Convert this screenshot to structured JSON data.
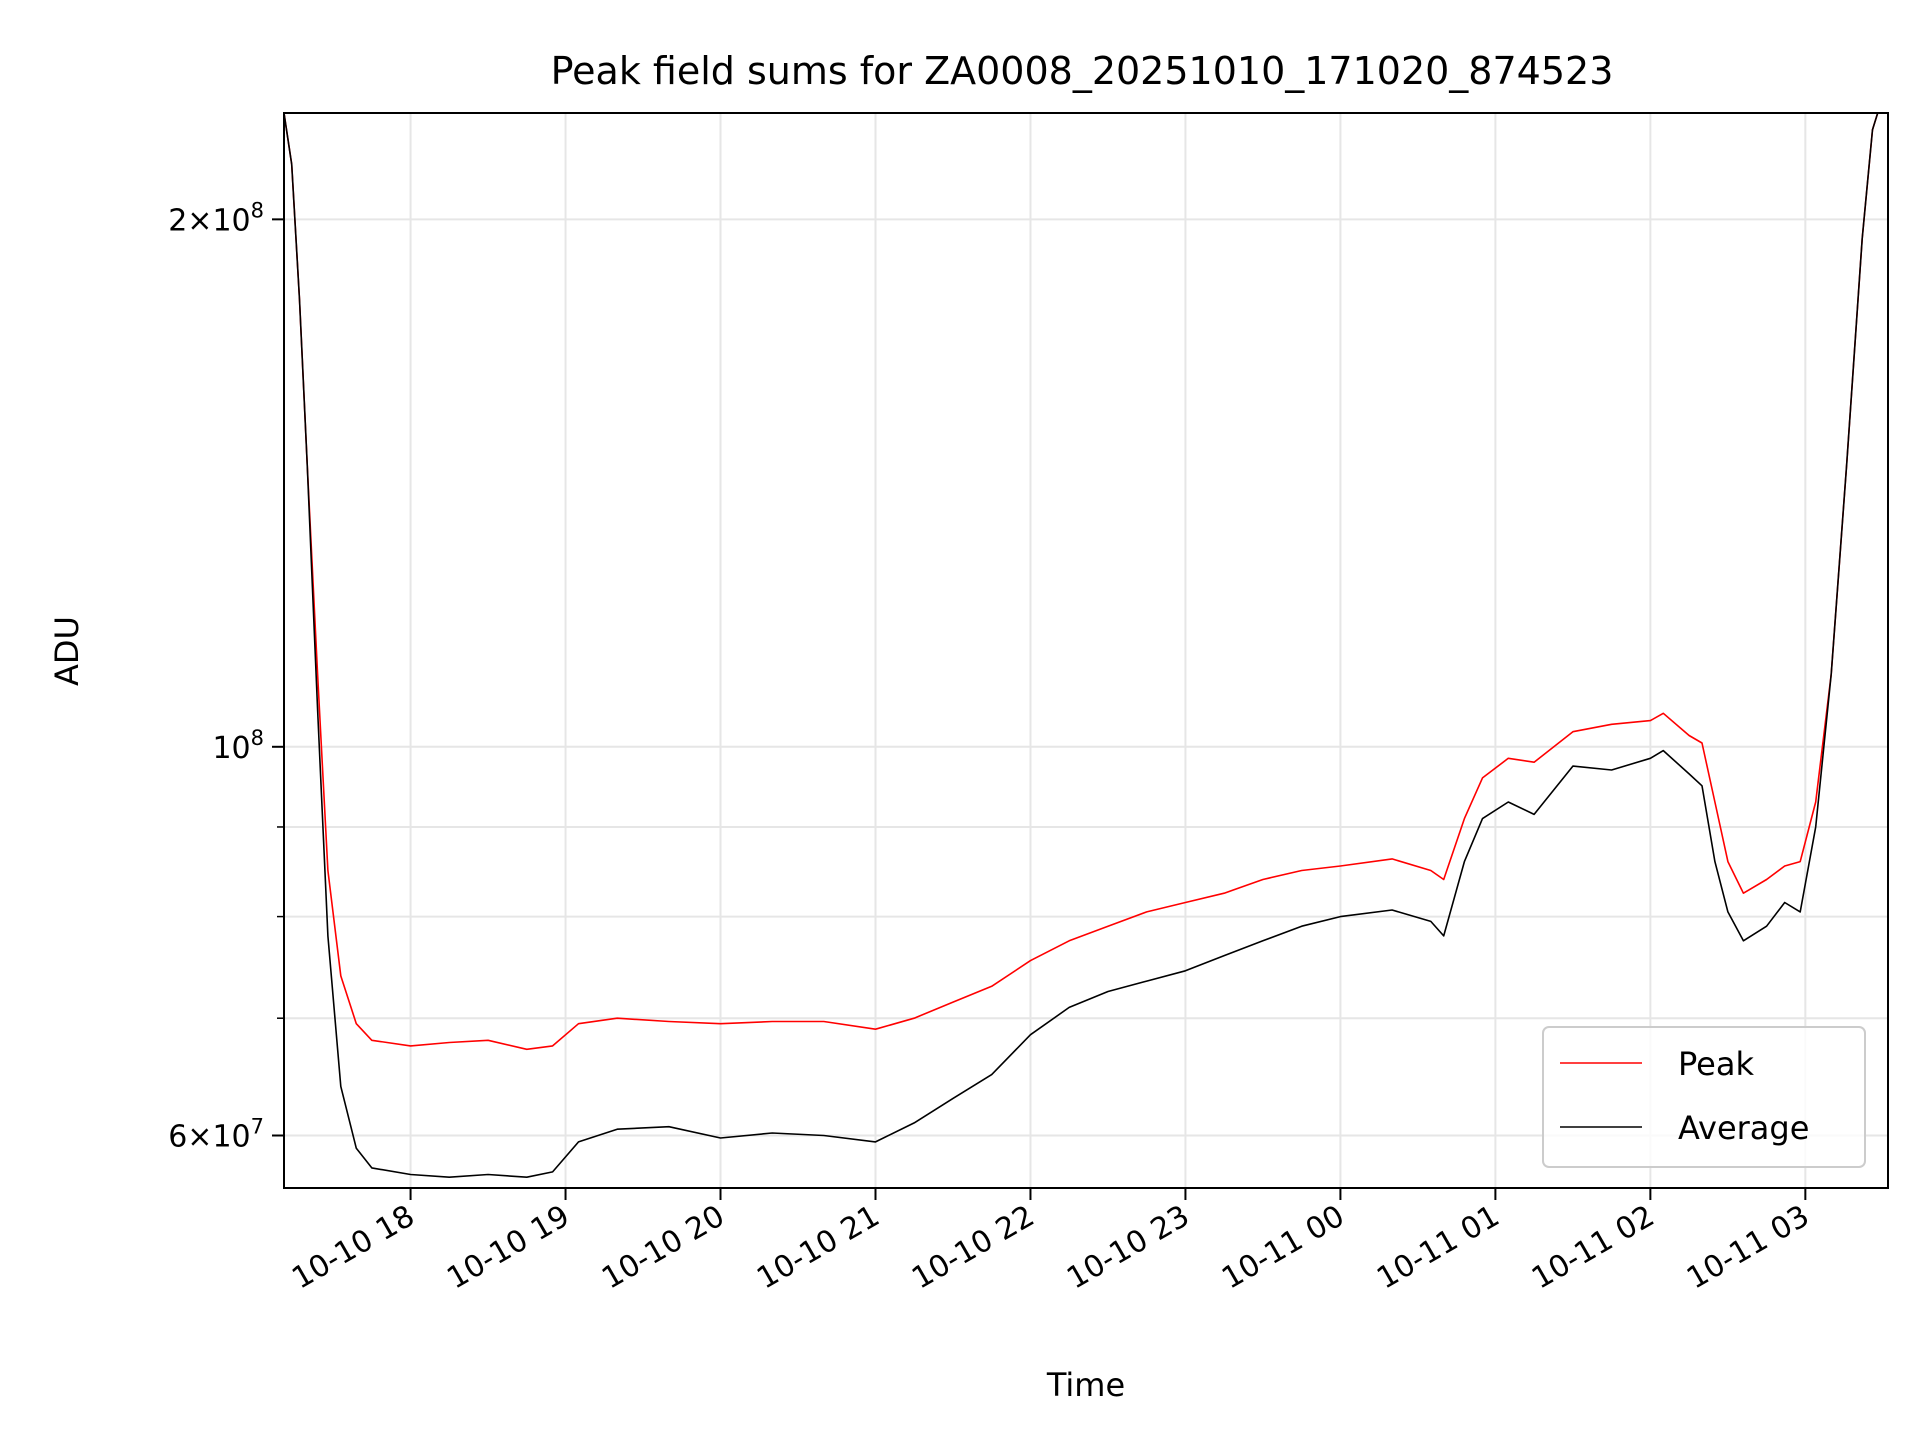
{
  "chart_data": {
    "type": "line",
    "title": "Peak field sums for ZA0008_20251010_171020_874523",
    "xlabel": "Time",
    "ylabel": "ADU",
    "y_scale": "log",
    "ylim": [
      56000000,
      230000000
    ],
    "xlim": [
      "2025-10-10 17:11",
      "2025-10-11 03:32"
    ],
    "grid": true,
    "legend_position": "lower-right",
    "x_ticks": [
      {
        "label": "10-10 18",
        "value": "2025-10-10 18:00"
      },
      {
        "label": "10-10 19",
        "value": "2025-10-10 19:00"
      },
      {
        "label": "10-10 20",
        "value": "2025-10-10 20:00"
      },
      {
        "label": "10-10 21",
        "value": "2025-10-10 21:00"
      },
      {
        "label": "10-10 22",
        "value": "2025-10-10 22:00"
      },
      {
        "label": "10-10 23",
        "value": "2025-10-10 23:00"
      },
      {
        "label": "10-11 00",
        "value": "2025-10-11 00:00"
      },
      {
        "label": "10-11 01",
        "value": "2025-10-11 01:00"
      },
      {
        "label": "10-11 02",
        "value": "2025-10-11 02:00"
      },
      {
        "label": "10-11 03",
        "value": "2025-10-11 03:00"
      }
    ],
    "y_ticks_major": [
      {
        "value": 200000000,
        "base": "2",
        "exp": "8"
      },
      {
        "value": 100000000,
        "base": "",
        "exp": "8"
      },
      {
        "value": 60000000,
        "base": "6",
        "exp": "7"
      }
    ],
    "y_ticks_minor": [
      70000000,
      80000000,
      90000000
    ],
    "series": [
      {
        "name": "Peak",
        "color": "#ff0000",
        "points": [
          [
            "2025-10-10 17:11",
            230000000
          ],
          [
            "2025-10-10 17:14",
            215000000
          ],
          [
            "2025-10-10 17:17",
            180000000
          ],
          [
            "2025-10-10 17:20",
            145000000
          ],
          [
            "2025-10-10 17:24",
            110000000
          ],
          [
            "2025-10-10 17:28",
            85000000
          ],
          [
            "2025-10-10 17:33",
            74000000
          ],
          [
            "2025-10-10 17:39",
            69500000
          ],
          [
            "2025-10-10 17:45",
            68000000
          ],
          [
            "2025-10-10 18:00",
            67500000
          ],
          [
            "2025-10-10 18:15",
            67800000
          ],
          [
            "2025-10-10 18:30",
            68000000
          ],
          [
            "2025-10-10 18:45",
            67200000
          ],
          [
            "2025-10-10 18:55",
            67500000
          ],
          [
            "2025-10-10 19:05",
            69500000
          ],
          [
            "2025-10-10 19:20",
            70000000
          ],
          [
            "2025-10-10 19:40",
            69700000
          ],
          [
            "2025-10-10 20:00",
            69500000
          ],
          [
            "2025-10-10 20:20",
            69700000
          ],
          [
            "2025-10-10 20:40",
            69700000
          ],
          [
            "2025-10-10 21:00",
            69000000
          ],
          [
            "2025-10-10 21:15",
            70000000
          ],
          [
            "2025-10-10 21:30",
            71500000
          ],
          [
            "2025-10-10 21:45",
            73000000
          ],
          [
            "2025-10-10 22:00",
            75500000
          ],
          [
            "2025-10-10 22:15",
            77500000
          ],
          [
            "2025-10-10 22:30",
            79000000
          ],
          [
            "2025-10-10 22:45",
            80500000
          ],
          [
            "2025-10-10 23:00",
            81500000
          ],
          [
            "2025-10-10 23:15",
            82500000
          ],
          [
            "2025-10-10 23:30",
            84000000
          ],
          [
            "2025-10-10 23:45",
            85000000
          ],
          [
            "2025-10-11 00:00",
            85500000
          ],
          [
            "2025-10-11 00:20",
            86300000
          ],
          [
            "2025-10-11 00:35",
            85000000
          ],
          [
            "2025-10-11 00:40",
            84000000
          ],
          [
            "2025-10-11 00:48",
            91000000
          ],
          [
            "2025-10-11 00:55",
            96000000
          ],
          [
            "2025-10-11 01:05",
            98500000
          ],
          [
            "2025-10-11 01:15",
            98000000
          ],
          [
            "2025-10-11 01:30",
            102000000
          ],
          [
            "2025-10-11 01:45",
            103000000
          ],
          [
            "2025-10-11 02:00",
            103500000
          ],
          [
            "2025-10-11 02:05",
            104500000
          ],
          [
            "2025-10-11 02:15",
            101500000
          ],
          [
            "2025-10-11 02:20",
            100500000
          ],
          [
            "2025-10-11 02:25",
            93000000
          ],
          [
            "2025-10-11 02:30",
            86000000
          ],
          [
            "2025-10-11 02:36",
            82500000
          ],
          [
            "2025-10-11 02:45",
            84000000
          ],
          [
            "2025-10-11 02:52",
            85500000
          ],
          [
            "2025-10-11 02:58",
            86000000
          ],
          [
            "2025-10-11 03:04",
            93000000
          ],
          [
            "2025-10-11 03:10",
            110000000
          ],
          [
            "2025-10-11 03:16",
            145000000
          ],
          [
            "2025-10-11 03:22",
            195000000
          ],
          [
            "2025-10-11 03:26",
            225000000
          ],
          [
            "2025-10-11 03:28",
            230000000
          ]
        ]
      },
      {
        "name": "Average",
        "color": "#000000",
        "points": [
          [
            "2025-10-10 17:11",
            230000000
          ],
          [
            "2025-10-10 17:14",
            215000000
          ],
          [
            "2025-10-10 17:17",
            180000000
          ],
          [
            "2025-10-10 17:20",
            145000000
          ],
          [
            "2025-10-10 17:24",
            105000000
          ],
          [
            "2025-10-10 17:28",
            78000000
          ],
          [
            "2025-10-10 17:33",
            64000000
          ],
          [
            "2025-10-10 17:39",
            59000000
          ],
          [
            "2025-10-10 17:45",
            57500000
          ],
          [
            "2025-10-10 18:00",
            57000000
          ],
          [
            "2025-10-10 18:15",
            56800000
          ],
          [
            "2025-10-10 18:30",
            57000000
          ],
          [
            "2025-10-10 18:45",
            56800000
          ],
          [
            "2025-10-10 18:55",
            57200000
          ],
          [
            "2025-10-10 19:05",
            59500000
          ],
          [
            "2025-10-10 19:20",
            60500000
          ],
          [
            "2025-10-10 19:40",
            60700000
          ],
          [
            "2025-10-10 20:00",
            59800000
          ],
          [
            "2025-10-10 20:20",
            60200000
          ],
          [
            "2025-10-10 20:40",
            60000000
          ],
          [
            "2025-10-10 21:00",
            59500000
          ],
          [
            "2025-10-10 21:15",
            61000000
          ],
          [
            "2025-10-10 21:30",
            63000000
          ],
          [
            "2025-10-10 21:45",
            65000000
          ],
          [
            "2025-10-10 22:00",
            68500000
          ],
          [
            "2025-10-10 22:15",
            71000000
          ],
          [
            "2025-10-10 22:30",
            72500000
          ],
          [
            "2025-10-10 22:45",
            73500000
          ],
          [
            "2025-10-10 23:00",
            74500000
          ],
          [
            "2025-10-10 23:15",
            76000000
          ],
          [
            "2025-10-10 23:30",
            77500000
          ],
          [
            "2025-10-10 23:45",
            79000000
          ],
          [
            "2025-10-11 00:00",
            80000000
          ],
          [
            "2025-10-11 00:20",
            80700000
          ],
          [
            "2025-10-11 00:35",
            79500000
          ],
          [
            "2025-10-11 00:40",
            78000000
          ],
          [
            "2025-10-11 00:48",
            86000000
          ],
          [
            "2025-10-11 00:55",
            91000000
          ],
          [
            "2025-10-11 01:05",
            93000000
          ],
          [
            "2025-10-11 01:15",
            91500000
          ],
          [
            "2025-10-11 01:30",
            97500000
          ],
          [
            "2025-10-11 01:45",
            97000000
          ],
          [
            "2025-10-11 02:00",
            98500000
          ],
          [
            "2025-10-11 02:05",
            99500000
          ],
          [
            "2025-10-11 02:15",
            96500000
          ],
          [
            "2025-10-11 02:20",
            95000000
          ],
          [
            "2025-10-11 02:25",
            86000000
          ],
          [
            "2025-10-11 02:30",
            80500000
          ],
          [
            "2025-10-11 02:36",
            77500000
          ],
          [
            "2025-10-11 02:45",
            79000000
          ],
          [
            "2025-10-11 02:52",
            81500000
          ],
          [
            "2025-10-11 02:58",
            80500000
          ],
          [
            "2025-10-11 03:04",
            90000000
          ],
          [
            "2025-10-11 03:10",
            110000000
          ],
          [
            "2025-10-11 03:16",
            145000000
          ],
          [
            "2025-10-11 03:22",
            195000000
          ],
          [
            "2025-10-11 03:26",
            225000000
          ],
          [
            "2025-10-11 03:28",
            230000000
          ]
        ]
      }
    ]
  }
}
